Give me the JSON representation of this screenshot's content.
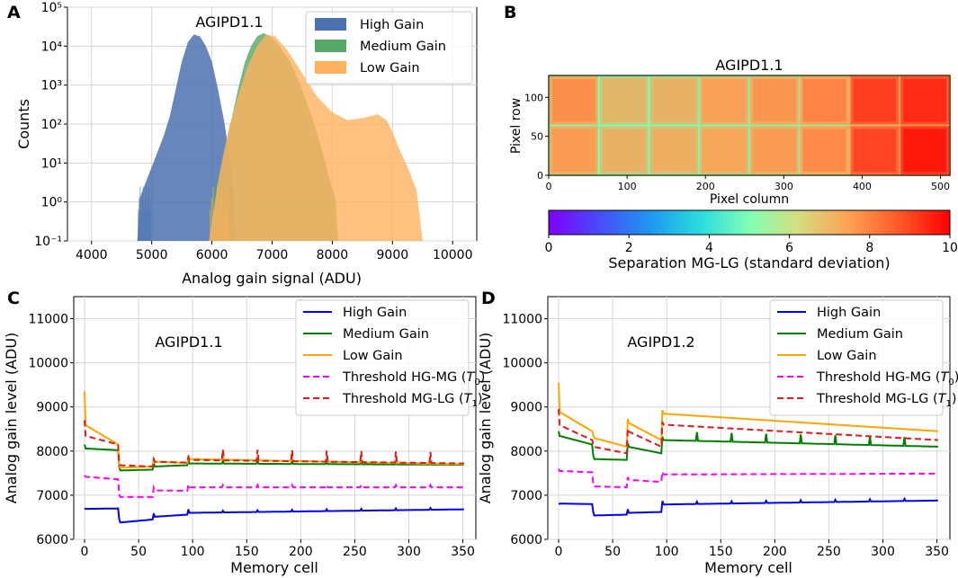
{
  "panels": {
    "A": "A",
    "B": "B",
    "C": "C",
    "D": "D"
  },
  "chart_data": [
    {
      "id": "A",
      "type": "histogram",
      "title": "AGIPD1.1",
      "xlabel": "Analog gain signal (ADU)",
      "ylabel": "Counts",
      "xlim": [
        3600,
        10400
      ],
      "ylim_log10": [
        -1,
        5
      ],
      "xticks": [
        "4000",
        "5000",
        "6000",
        "7000",
        "8000",
        "9000",
        "10000"
      ],
      "xtick_values": [
        4000,
        5000,
        6000,
        7000,
        8000,
        9000,
        10000
      ],
      "yticks": [
        "10⁻¹",
        "10⁰",
        "10¹",
        "10²",
        "10³",
        "10⁴",
        "10⁵"
      ],
      "ytick_values": [
        -1,
        0,
        1,
        2,
        3,
        4,
        5
      ],
      "legend_position": "top-right",
      "series": [
        {
          "name": "High Gain",
          "color": "#4c72b0",
          "points": [
            [
              4760,
              -1
            ],
            [
              4800,
              0.1
            ],
            [
              4900,
              0.5
            ],
            [
              5000,
              0.9
            ],
            [
              5100,
              1.3
            ],
            [
              5200,
              1.7
            ],
            [
              5300,
              2.2
            ],
            [
              5400,
              2.9
            ],
            [
              5500,
              3.6
            ],
            [
              5600,
              4.1
            ],
            [
              5700,
              4.3
            ],
            [
              5800,
              4.25
            ],
            [
              5900,
              4.0
            ],
            [
              6000,
              3.6
            ],
            [
              6100,
              2.9
            ],
            [
              6200,
              2.1
            ],
            [
              6300,
              1.1
            ],
            [
              6350,
              0.4
            ],
            [
              6400,
              -1
            ]
          ]
        },
        {
          "name": "Medium Gain",
          "color": "#55a868",
          "points": [
            [
              5950,
              -1
            ],
            [
              6050,
              0.3
            ],
            [
              6150,
              0.9
            ],
            [
              6250,
              1.6
            ],
            [
              6350,
              2.3
            ],
            [
              6450,
              3.0
            ],
            [
              6550,
              3.6
            ],
            [
              6650,
              4.0
            ],
            [
              6750,
              4.25
            ],
            [
              6850,
              4.33
            ],
            [
              6950,
              4.28
            ],
            [
              7100,
              4.05
            ],
            [
              7300,
              3.6
            ],
            [
              7500,
              2.9
            ],
            [
              7700,
              2.0
            ],
            [
              7850,
              1.2
            ],
            [
              7950,
              0.6
            ],
            [
              8050,
              0.1
            ],
            [
              8100,
              -1
            ]
          ]
        },
        {
          "name": "Low Gain",
          "color": "#ffb25e",
          "points": [
            [
              5950,
              -1
            ],
            [
              6100,
              0.5
            ],
            [
              6200,
              1.3
            ],
            [
              6300,
              2.0
            ],
            [
              6450,
              2.8
            ],
            [
              6600,
              3.5
            ],
            [
              6750,
              4.0
            ],
            [
              6900,
              4.3
            ],
            [
              7050,
              4.25
            ],
            [
              7250,
              3.9
            ],
            [
              7500,
              3.3
            ],
            [
              7750,
              2.7
            ],
            [
              8000,
              2.3
            ],
            [
              8250,
              2.1
            ],
            [
              8500,
              2.15
            ],
            [
              8750,
              2.25
            ],
            [
              8900,
              2.1
            ],
            [
              9000,
              1.8
            ],
            [
              9100,
              1.4
            ],
            [
              9250,
              0.9
            ],
            [
              9400,
              0.3
            ],
            [
              9500,
              -1
            ]
          ]
        }
      ]
    },
    {
      "id": "B",
      "type": "heatmap",
      "title": "AGIPD1.1",
      "xlabel": "Pixel column",
      "ylabel": "Pixel row",
      "xlim": [
        0,
        512
      ],
      "ylim": [
        0,
        128
      ],
      "xticks": [
        "0",
        "100",
        "200",
        "300",
        "400",
        "500"
      ],
      "xtick_values": [
        0,
        100,
        200,
        300,
        400,
        500
      ],
      "yticks": [
        "0",
        "50",
        "100"
      ],
      "ytick_values": [
        0,
        50,
        100
      ],
      "colorbar": {
        "label": "Separation MG-LG (standard deviation)",
        "range": [
          0,
          10
        ],
        "ticks": [
          "0",
          "2",
          "4",
          "6",
          "8",
          "10"
        ],
        "tick_values": [
          0,
          2,
          4,
          6,
          8,
          10
        ]
      },
      "asic_grid": {
        "columns": 8,
        "rows": 2,
        "mean_values": [
          [
            7.2,
            6.4,
            6.5,
            6.9,
            7.1,
            7.4,
            8.5,
            8.8
          ],
          [
            7.0,
            6.5,
            6.6,
            6.8,
            7.0,
            7.3,
            8.4,
            9.1
          ]
        ]
      }
    },
    {
      "id": "C",
      "type": "line",
      "title": "AGIPD1.1",
      "xlabel": "Memory cell",
      "ylabel": "Analog gain level (ADU)",
      "xlim": [
        -10,
        362
      ],
      "ylim": [
        6000,
        11500
      ],
      "xticks": [
        "0",
        "50",
        "100",
        "150",
        "200",
        "250",
        "300",
        "350"
      ],
      "xtick_values": [
        0,
        50,
        100,
        150,
        200,
        250,
        300,
        350
      ],
      "yticks": [
        "6000",
        "7000",
        "8000",
        "9000",
        "10000",
        "11000"
      ],
      "ytick_values": [
        6000,
        7000,
        8000,
        9000,
        10000,
        11000
      ],
      "legend_position": "top-right",
      "series": [
        {
          "name": "High Gain",
          "legend": "High Gain",
          "color": "#0000ff",
          "style": "solid",
          "start": 6700,
          "segments": [
            [
              0,
              31,
              6690,
              6700,
              30
            ],
            [
              32,
              63,
              6380,
              6450,
              0
            ],
            [
              64,
              95,
              6510,
              6560,
              0
            ],
            [
              96,
              351,
              6600,
              6680,
              40
            ]
          ]
        },
        {
          "name": "Medium Gain",
          "legend": "Medium Gain",
          "color": "#008000",
          "style": "solid",
          "start": 8150,
          "segments": [
            [
              0,
              31,
              8060,
              8020,
              0
            ],
            [
              32,
              63,
              7560,
              7580,
              0
            ],
            [
              64,
              95,
              7650,
              7680,
              0
            ],
            [
              96,
              351,
              7720,
              7690,
              60
            ]
          ]
        },
        {
          "name": "Low Gain",
          "legend": "Low Gain",
          "color": "#ffa500",
          "style": "solid",
          "start": 9350,
          "segments": [
            [
              0,
              31,
              8600,
              8150,
              0
            ],
            [
              32,
              63,
              7620,
              7650,
              0
            ],
            [
              64,
              95,
              7760,
              7730,
              0
            ],
            [
              96,
              351,
              7820,
              7700,
              80
            ]
          ]
        },
        {
          "name": "Threshold HG-MG",
          "legend_prefix": "Threshold HG-MG (",
          "legend_sym": "T",
          "legend_sub": "0",
          "legend_suffix": ")",
          "color": "#ff00ff",
          "style": "dashed",
          "start": 7450,
          "segments": [
            [
              0,
              31,
              7420,
              7360,
              0
            ],
            [
              32,
              63,
              6960,
              6960,
              0
            ],
            [
              64,
              95,
              7110,
              7100,
              0
            ],
            [
              96,
              351,
              7180,
              7180,
              50
            ]
          ]
        },
        {
          "name": "Threshold MG-LG",
          "legend_prefix": "Threshold MG-LG (",
          "legend_sym": "T",
          "legend_sub": "1",
          "legend_suffix": ")",
          "color": "#e31a1c",
          "style": "dashed",
          "start": 8700,
          "segments": [
            [
              0,
              31,
              8350,
              8150,
              0
            ],
            [
              32,
              63,
              7680,
              7650,
              0
            ],
            [
              64,
              95,
              7760,
              7740,
              0
            ],
            [
              96,
              351,
              7800,
              7720,
              250
            ]
          ]
        }
      ]
    },
    {
      "id": "D",
      "type": "line",
      "title": "AGIPD1.2",
      "xlabel": "Memory cell",
      "ylabel": "Analog gain level (ADU)",
      "xlim": [
        -10,
        362
      ],
      "ylim": [
        6000,
        11500
      ],
      "xticks": [
        "0",
        "50",
        "100",
        "150",
        "200",
        "250",
        "300",
        "350"
      ],
      "xtick_values": [
        0,
        50,
        100,
        150,
        200,
        250,
        300,
        350
      ],
      "yticks": [
        "6000",
        "7000",
        "8000",
        "9000",
        "10000",
        "11000"
      ],
      "ytick_values": [
        6000,
        7000,
        8000,
        9000,
        10000,
        11000
      ],
      "legend_position": "top-right",
      "series": [
        {
          "name": "High Gain",
          "legend": "High Gain",
          "color": "#0000ff",
          "style": "solid",
          "start": 6800,
          "segments": [
            [
              0,
              31,
              6810,
              6800,
              0
            ],
            [
              32,
              63,
              6540,
              6560,
              0
            ],
            [
              64,
              95,
              6600,
              6620,
              0
            ],
            [
              96,
              351,
              6790,
              6880,
              50
            ]
          ]
        },
        {
          "name": "Medium Gain",
          "legend": "Medium Gain",
          "color": "#008000",
          "style": "solid",
          "start": 8450,
          "segments": [
            [
              0,
              31,
              8350,
              8150,
              0
            ],
            [
              32,
              63,
              7820,
              7800,
              0
            ],
            [
              64,
              95,
              8100,
              7950,
              0
            ],
            [
              96,
              351,
              8250,
              8100,
              200
            ]
          ]
        },
        {
          "name": "Low Gain",
          "legend": "Low Gain",
          "color": "#ffa500",
          "style": "solid",
          "start": 9550,
          "segments": [
            [
              0,
              31,
              8900,
              8450,
              0
            ],
            [
              32,
              63,
              8300,
              8100,
              0
            ],
            [
              64,
              95,
              8650,
              8250,
              0
            ],
            [
              96,
              351,
              8850,
              8450,
              0
            ]
          ]
        },
        {
          "name": "Threshold HG-MG",
          "legend_prefix": "Threshold HG-MG (",
          "legend_sym": "T",
          "legend_sub": "0",
          "legend_suffix": ")",
          "color": "#ff00ff",
          "style": "dashed",
          "start": 7600,
          "segments": [
            [
              0,
              31,
              7550,
              7520,
              0
            ],
            [
              32,
              63,
              7200,
              7180,
              0
            ],
            [
              64,
              95,
              7350,
              7300,
              0
            ],
            [
              96,
              351,
              7470,
              7490,
              0
            ]
          ]
        },
        {
          "name": "Threshold MG-LG",
          "legend_prefix": "Threshold MG-LG (",
          "legend_sym": "T",
          "legend_sub": "1",
          "legend_suffix": ")",
          "color": "#e31a1c",
          "style": "dashed",
          "start": 8950,
          "segments": [
            [
              0,
              31,
              8600,
              8250,
              0
            ],
            [
              32,
              63,
              8100,
              7950,
              0
            ],
            [
              64,
              95,
              8450,
              8100,
              0
            ],
            [
              96,
              351,
              8600,
              8250,
              0
            ]
          ]
        }
      ]
    }
  ]
}
